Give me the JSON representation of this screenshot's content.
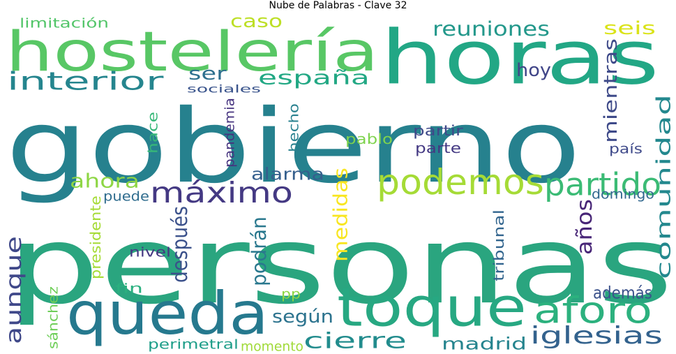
{
  "title": "Nube de Palabras - Clave 32",
  "words": [
    {
      "text": "personas",
      "color": "#2aa57f"
    },
    {
      "text": "gobierno",
      "color": "#26818e"
    },
    {
      "text": "horas",
      "color": "#22a785"
    },
    {
      "text": "hostelería",
      "color": "#58c765"
    },
    {
      "text": "toque",
      "color": "#27a882"
    },
    {
      "text": "queda",
      "color": "#26798e"
    },
    {
      "text": "podemos",
      "color": "#a5db36"
    },
    {
      "text": "máximo",
      "color": "#443983"
    },
    {
      "text": "aforo",
      "color": "#2cb17e"
    },
    {
      "text": "partido",
      "color": "#3bbb75"
    },
    {
      "text": "iglesias",
      "color": "#33628d"
    },
    {
      "text": "comunidad",
      "color": "#23888e"
    },
    {
      "text": "cierre",
      "color": "#228c8d"
    },
    {
      "text": "interior",
      "color": "#25858e"
    },
    {
      "text": "aunque",
      "color": "#3f4889"
    },
    {
      "text": "reuniones",
      "color": "#23988b"
    },
    {
      "text": "españa",
      "color": "#22a884"
    },
    {
      "text": "ser",
      "color": "#2d708e"
    },
    {
      "text": "mientras",
      "color": "#3e4a89"
    },
    {
      "text": "madrid",
      "color": "#25848e"
    },
    {
      "text": "medidas",
      "color": "#f8e621"
    },
    {
      "text": "años",
      "color": "#482677"
    },
    {
      "text": "ahora",
      "color": "#8ed645"
    },
    {
      "text": "alarma",
      "color": "#355f8d"
    },
    {
      "text": "además",
      "color": "#3b528b"
    },
    {
      "text": "después",
      "color": "#3b518b"
    },
    {
      "text": "según",
      "color": "#2c738e"
    },
    {
      "text": "caso",
      "color": "#bddf26"
    },
    {
      "text": "seis",
      "color": "#dae319"
    },
    {
      "text": "hoy",
      "color": "#404588"
    },
    {
      "text": "podrán",
      "color": "#2a788e"
    },
    {
      "text": "sociales",
      "color": "#3a548c"
    },
    {
      "text": "limitación",
      "color": "#52c569"
    },
    {
      "text": "pablo",
      "color": "#7fd34e"
    },
    {
      "text": "partir",
      "color": "#3e4989"
    },
    {
      "text": "parte",
      "color": "#443983"
    },
    {
      "text": "hecho",
      "color": "#27808e"
    },
    {
      "text": "pandemia",
      "color": "#46337f"
    },
    {
      "text": "hace",
      "color": "#37b878"
    },
    {
      "text": "país",
      "color": "#3e4989"
    },
    {
      "text": "domingo",
      "color": "#31688e"
    },
    {
      "text": "puede",
      "color": "#2f6c8e"
    },
    {
      "text": "presidente",
      "color": "#a5db36"
    },
    {
      "text": "nivel",
      "color": "#453882"
    },
    {
      "text": "tribunal",
      "color": "#32658e"
    },
    {
      "text": "fin",
      "color": "#2ab07f"
    },
    {
      "text": "pp",
      "color": "#8ed645"
    },
    {
      "text": "sánchez",
      "color": "#6ece58"
    },
    {
      "text": "perimetral",
      "color": "#1f9e89"
    },
    {
      "text": "momento",
      "color": "#a0da39"
    }
  ]
}
